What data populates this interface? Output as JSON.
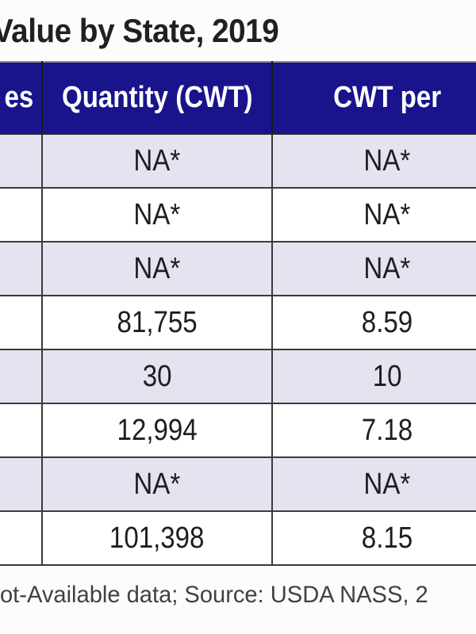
{
  "chart_data": {
    "type": "table",
    "title": "Value by State, 2019",
    "columns": [
      "es",
      "Quantity (CWT)",
      "CWT per"
    ],
    "rows": [
      [
        "",
        "NA*",
        "NA*"
      ],
      [
        "",
        "NA*",
        "NA*"
      ],
      [
        "",
        "NA*",
        "NA*"
      ],
      [
        "",
        "81,755",
        "8.59"
      ],
      [
        "",
        "30",
        "10"
      ],
      [
        "",
        "12,994",
        "7.18"
      ],
      [
        "",
        "NA*",
        "NA*"
      ],
      [
        "",
        "101,398",
        "8.15"
      ]
    ],
    "source_note": "ot-Available data;  Source: USDA NASS, 2"
  },
  "colors": {
    "header_bg": "#19148c",
    "row_alt_bg": "#e5e3f0",
    "row_bg": "#ffffff",
    "border": "#3a3a3a",
    "top_rule": "#8d8d8d"
  }
}
